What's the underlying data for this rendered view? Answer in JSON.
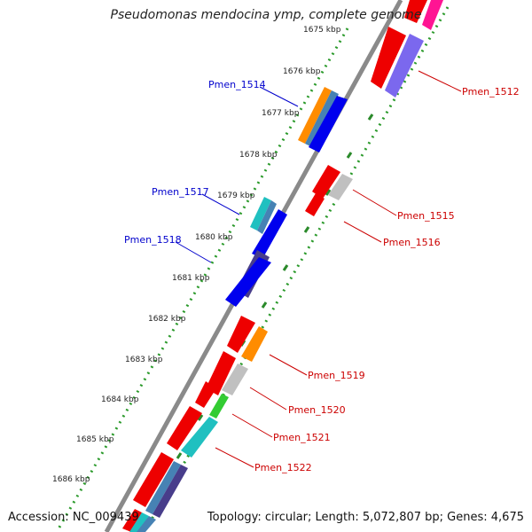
{
  "title": "Pseudomonas mendocina ymp, complete genome",
  "accession": "Accession: NC_009439",
  "summary": "Topology: circular; Length: 5,072,807 bp; Genes: 4,675",
  "colors": {
    "backbone": "#8a8a8a",
    "gc_dots": "#2b9a2b",
    "label_blue": "#0000cc",
    "label_red": "#cc0000"
  },
  "ticks": [
    "1675 kbp",
    "1676 kbp",
    "1677 kbp",
    "1678 kbp",
    "1679 kbp",
    "1680 kbp",
    "1681 kbp",
    "1682 kbp",
    "1683 kbp",
    "1684 kbp",
    "1685 kbp",
    "1686 kbp"
  ],
  "genes": [
    {
      "name": "Pmen_1512",
      "color": "#6a5acd",
      "labeled": true
    },
    {
      "name": "Pmen_1514",
      "color": "#ff8c00",
      "labeled": true
    },
    {
      "name": "Pmen_1515",
      "color": "#c0c0c0",
      "labeled": true
    },
    {
      "name": "Pmen_1516",
      "color": "#dd0000",
      "labeled": true
    },
    {
      "name": "Pmen_1517",
      "color": "#20c0c0",
      "labeled": true
    },
    {
      "name": "Pmen_1518",
      "color": "#483d8b",
      "labeled": true
    },
    {
      "name": "Pmen_1519",
      "color": "#ff8c00",
      "labeled": true
    },
    {
      "name": "Pmen_1520",
      "color": "#c0c0c0",
      "labeled": true
    },
    {
      "name": "Pmen_1521",
      "color": "#33cc33",
      "labeled": true
    },
    {
      "name": "Pmen_1522",
      "color": "#20c0c0",
      "labeled": true
    }
  ]
}
